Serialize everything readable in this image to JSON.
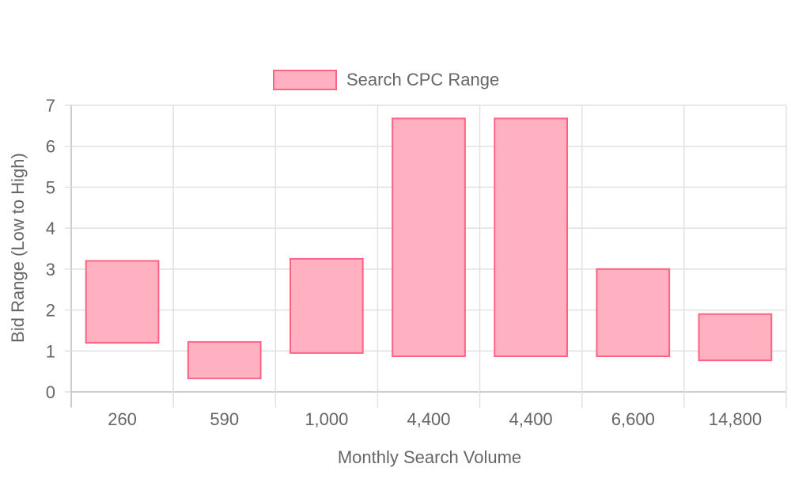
{
  "colors": {
    "bar_fill": "#ffb1c1",
    "bar_stroke": "#ff6384",
    "grid": "#e1e1e1",
    "axis": "#bdbdbd",
    "text": "#666666"
  },
  "chart_data": {
    "type": "bar",
    "subtype": "floating-range",
    "categories": [
      "260",
      "590",
      "1,000",
      "4,400",
      "4,400",
      "6,600",
      "14,800"
    ],
    "series": [
      {
        "name": "Search CPC Range",
        "ranges": [
          [
            1.2,
            3.2
          ],
          [
            0.33,
            1.22
          ],
          [
            0.95,
            3.25
          ],
          [
            0.87,
            6.68
          ],
          [
            0.87,
            6.68
          ],
          [
            0.87,
            3.0
          ],
          [
            0.77,
            1.9
          ]
        ]
      }
    ],
    "xlabel": "Monthly Search Volume",
    "ylabel": "Bid Range (Low to High)",
    "ylim": [
      0,
      7
    ],
    "yticks": [
      "0",
      "1",
      "2",
      "3",
      "4",
      "5",
      "6",
      "7"
    ],
    "grid": true,
    "legend_position": "top"
  }
}
